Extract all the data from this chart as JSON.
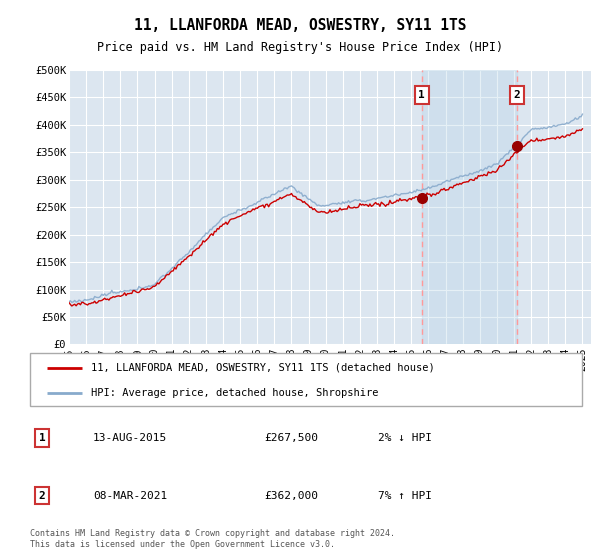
{
  "title": "11, LLANFORDA MEAD, OSWESTRY, SY11 1TS",
  "subtitle": "Price paid vs. HM Land Registry's House Price Index (HPI)",
  "ylabel_ticks": [
    "£0",
    "£50K",
    "£100K",
    "£150K",
    "£200K",
    "£250K",
    "£300K",
    "£350K",
    "£400K",
    "£450K",
    "£500K"
  ],
  "ytick_values": [
    0,
    50000,
    100000,
    150000,
    200000,
    250000,
    300000,
    350000,
    400000,
    450000,
    500000
  ],
  "ylim": [
    0,
    500000
  ],
  "xlim_start": 1995.0,
  "xlim_end": 2025.5,
  "plot_bg_color": "#dce6f0",
  "shade_color": "#cce0f0",
  "grid_color": "#ffffff",
  "sale1_x": 2015.617,
  "sale1_y": 267500,
  "sale2_x": 2021.185,
  "sale2_y": 362000,
  "sale1_label": "13-AUG-2015",
  "sale1_price": "£267,500",
  "sale1_hpi": "2% ↓ HPI",
  "sale2_label": "08-MAR-2021",
  "sale2_price": "£362,000",
  "sale2_hpi": "7% ↑ HPI",
  "legend_line1": "11, LLANFORDA MEAD, OSWESTRY, SY11 1TS (detached house)",
  "legend_line2": "HPI: Average price, detached house, Shropshire",
  "footer": "Contains HM Land Registry data © Crown copyright and database right 2024.\nThis data is licensed under the Open Government Licence v3.0.",
  "line_color_red": "#cc0000",
  "line_color_blue": "#88aacc",
  "marker_color": "#990000",
  "dashed_color": "#ff9999"
}
